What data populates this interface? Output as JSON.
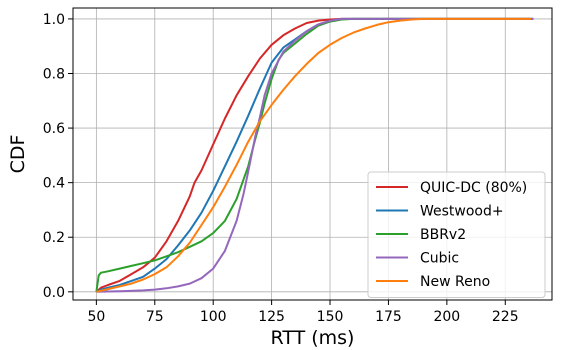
{
  "chart_data": {
    "type": "line",
    "xlabel": "RTT (ms)",
    "ylabel": "CDF",
    "xlim": [
      40,
      245
    ],
    "ylim": [
      -0.03,
      1.04
    ],
    "xticks": [
      50,
      75,
      100,
      125,
      150,
      175,
      200,
      225
    ],
    "yticks": [
      0.0,
      0.2,
      0.4,
      0.6,
      0.8,
      1.0
    ],
    "xtick_labels": [
      "50",
      "75",
      "100",
      "125",
      "150",
      "175",
      "200",
      "225"
    ],
    "ytick_labels": [
      "0.0",
      "0.2",
      "0.4",
      "0.6",
      "0.8",
      "1.0"
    ],
    "grid": true,
    "legend_position": "lower-right",
    "series": [
      {
        "name": "QUIC-DC (80%)",
        "color": "#d62728",
        "points": [
          [
            50,
            0.0
          ],
          [
            52,
            0.015
          ],
          [
            55,
            0.025
          ],
          [
            60,
            0.04
          ],
          [
            65,
            0.065
          ],
          [
            70,
            0.09
          ],
          [
            75,
            0.125
          ],
          [
            80,
            0.185
          ],
          [
            85,
            0.26
          ],
          [
            90,
            0.35
          ],
          [
            92,
            0.4
          ],
          [
            95,
            0.445
          ],
          [
            100,
            0.54
          ],
          [
            105,
            0.635
          ],
          [
            110,
            0.72
          ],
          [
            115,
            0.79
          ],
          [
            120,
            0.855
          ],
          [
            125,
            0.905
          ],
          [
            130,
            0.94
          ],
          [
            135,
            0.965
          ],
          [
            140,
            0.985
          ],
          [
            145,
            0.994
          ],
          [
            150,
            0.998
          ],
          [
            155,
            1.0
          ],
          [
            236,
            1.0
          ]
        ]
      },
      {
        "name": "Westwood+",
        "color": "#1f77b4",
        "points": [
          [
            50,
            0.0
          ],
          [
            52,
            0.008
          ],
          [
            55,
            0.015
          ],
          [
            60,
            0.025
          ],
          [
            65,
            0.04
          ],
          [
            70,
            0.055
          ],
          [
            75,
            0.085
          ],
          [
            80,
            0.12
          ],
          [
            85,
            0.17
          ],
          [
            90,
            0.225
          ],
          [
            95,
            0.29
          ],
          [
            100,
            0.37
          ],
          [
            105,
            0.46
          ],
          [
            110,
            0.55
          ],
          [
            115,
            0.645
          ],
          [
            120,
            0.745
          ],
          [
            125,
            0.84
          ],
          [
            130,
            0.895
          ],
          [
            135,
            0.925
          ],
          [
            140,
            0.955
          ],
          [
            145,
            0.98
          ],
          [
            150,
            0.993
          ],
          [
            155,
            1.0
          ],
          [
            237,
            1.0
          ]
        ]
      },
      {
        "name": "BBRv2",
        "color": "#2ca02c",
        "points": [
          [
            50,
            0.0
          ],
          [
            51,
            0.06
          ],
          [
            52,
            0.07
          ],
          [
            55,
            0.075
          ],
          [
            60,
            0.085
          ],
          [
            65,
            0.095
          ],
          [
            70,
            0.105
          ],
          [
            75,
            0.115
          ],
          [
            80,
            0.13
          ],
          [
            85,
            0.145
          ],
          [
            90,
            0.165
          ],
          [
            95,
            0.185
          ],
          [
            100,
            0.215
          ],
          [
            105,
            0.26
          ],
          [
            110,
            0.34
          ],
          [
            115,
            0.46
          ],
          [
            118,
            0.56
          ],
          [
            120,
            0.62
          ],
          [
            122,
            0.69
          ],
          [
            125,
            0.78
          ],
          [
            128,
            0.85
          ],
          [
            130,
            0.875
          ],
          [
            135,
            0.91
          ],
          [
            140,
            0.945
          ],
          [
            145,
            0.975
          ],
          [
            150,
            0.99
          ],
          [
            155,
            0.998
          ],
          [
            160,
            1.0
          ],
          [
            237,
            1.0
          ]
        ]
      },
      {
        "name": "Cubic",
        "color": "#9467bd",
        "points": [
          [
            50,
            0.0
          ],
          [
            60,
            0.002
          ],
          [
            70,
            0.005
          ],
          [
            75,
            0.008
          ],
          [
            80,
            0.013
          ],
          [
            85,
            0.02
          ],
          [
            90,
            0.03
          ],
          [
            95,
            0.05
          ],
          [
            100,
            0.085
          ],
          [
            105,
            0.15
          ],
          [
            110,
            0.26
          ],
          [
            113,
            0.36
          ],
          [
            115,
            0.44
          ],
          [
            118,
            0.57
          ],
          [
            120,
            0.64
          ],
          [
            122,
            0.72
          ],
          [
            125,
            0.8
          ],
          [
            130,
            0.88
          ],
          [
            135,
            0.92
          ],
          [
            140,
            0.955
          ],
          [
            145,
            0.98
          ],
          [
            150,
            0.993
          ],
          [
            155,
            1.0
          ],
          [
            237,
            1.0
          ]
        ]
      },
      {
        "name": "New Reno",
        "color": "#ff7f0e",
        "points": [
          [
            50,
            0.0
          ],
          [
            55,
            0.01
          ],
          [
            60,
            0.02
          ],
          [
            65,
            0.03
          ],
          [
            70,
            0.045
          ],
          [
            75,
            0.065
          ],
          [
            80,
            0.09
          ],
          [
            85,
            0.13
          ],
          [
            90,
            0.18
          ],
          [
            95,
            0.245
          ],
          [
            100,
            0.31
          ],
          [
            105,
            0.385
          ],
          [
            110,
            0.465
          ],
          [
            115,
            0.55
          ],
          [
            120,
            0.625
          ],
          [
            125,
            0.685
          ],
          [
            130,
            0.74
          ],
          [
            135,
            0.79
          ],
          [
            140,
            0.835
          ],
          [
            145,
            0.875
          ],
          [
            150,
            0.905
          ],
          [
            155,
            0.93
          ],
          [
            160,
            0.95
          ],
          [
            165,
            0.965
          ],
          [
            170,
            0.978
          ],
          [
            175,
            0.988
          ],
          [
            180,
            0.994
          ],
          [
            185,
            0.998
          ],
          [
            190,
            1.0
          ],
          [
            236,
            1.0
          ]
        ]
      }
    ]
  }
}
